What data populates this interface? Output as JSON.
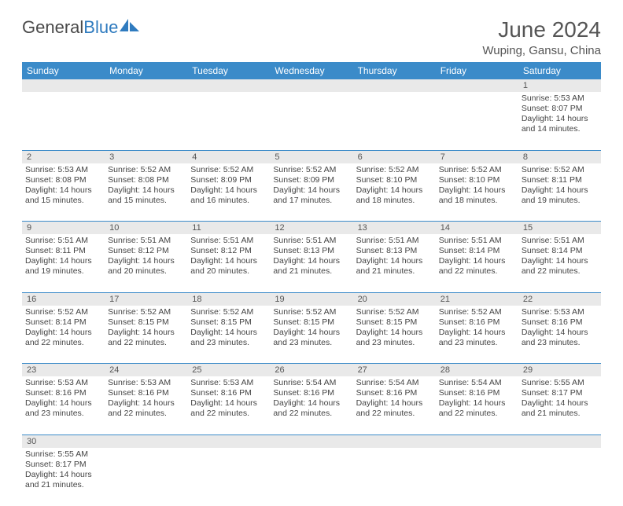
{
  "logo": {
    "text_main": "General",
    "text_accent": "Blue"
  },
  "title": "June 2024",
  "location": "Wuping, Gansu, China",
  "colors": {
    "header_bg": "#3b8bc9",
    "header_text": "#ffffff",
    "daynum_bg": "#e9e9e9",
    "text": "#444444",
    "rule": "#3b8bc9",
    "logo_accent": "#2f7bbf"
  },
  "typography": {
    "title_fontsize": 28,
    "location_fontsize": 15,
    "dow_fontsize": 12,
    "cell_fontsize": 10.5
  },
  "days_of_week": [
    "Sunday",
    "Monday",
    "Tuesday",
    "Wednesday",
    "Thursday",
    "Friday",
    "Saturday"
  ],
  "weeks": [
    [
      null,
      null,
      null,
      null,
      null,
      null,
      {
        "n": "1",
        "sunrise": "5:53 AM",
        "sunset": "8:07 PM",
        "daylight": "14 hours and 14 minutes."
      }
    ],
    [
      {
        "n": "2",
        "sunrise": "5:53 AM",
        "sunset": "8:08 PM",
        "daylight": "14 hours and 15 minutes."
      },
      {
        "n": "3",
        "sunrise": "5:52 AM",
        "sunset": "8:08 PM",
        "daylight": "14 hours and 15 minutes."
      },
      {
        "n": "4",
        "sunrise": "5:52 AM",
        "sunset": "8:09 PM",
        "daylight": "14 hours and 16 minutes."
      },
      {
        "n": "5",
        "sunrise": "5:52 AM",
        "sunset": "8:09 PM",
        "daylight": "14 hours and 17 minutes."
      },
      {
        "n": "6",
        "sunrise": "5:52 AM",
        "sunset": "8:10 PM",
        "daylight": "14 hours and 18 minutes."
      },
      {
        "n": "7",
        "sunrise": "5:52 AM",
        "sunset": "8:10 PM",
        "daylight": "14 hours and 18 minutes."
      },
      {
        "n": "8",
        "sunrise": "5:52 AM",
        "sunset": "8:11 PM",
        "daylight": "14 hours and 19 minutes."
      }
    ],
    [
      {
        "n": "9",
        "sunrise": "5:51 AM",
        "sunset": "8:11 PM",
        "daylight": "14 hours and 19 minutes."
      },
      {
        "n": "10",
        "sunrise": "5:51 AM",
        "sunset": "8:12 PM",
        "daylight": "14 hours and 20 minutes."
      },
      {
        "n": "11",
        "sunrise": "5:51 AM",
        "sunset": "8:12 PM",
        "daylight": "14 hours and 20 minutes."
      },
      {
        "n": "12",
        "sunrise": "5:51 AM",
        "sunset": "8:13 PM",
        "daylight": "14 hours and 21 minutes."
      },
      {
        "n": "13",
        "sunrise": "5:51 AM",
        "sunset": "8:13 PM",
        "daylight": "14 hours and 21 minutes."
      },
      {
        "n": "14",
        "sunrise": "5:51 AM",
        "sunset": "8:14 PM",
        "daylight": "14 hours and 22 minutes."
      },
      {
        "n": "15",
        "sunrise": "5:51 AM",
        "sunset": "8:14 PM",
        "daylight": "14 hours and 22 minutes."
      }
    ],
    [
      {
        "n": "16",
        "sunrise": "5:52 AM",
        "sunset": "8:14 PM",
        "daylight": "14 hours and 22 minutes."
      },
      {
        "n": "17",
        "sunrise": "5:52 AM",
        "sunset": "8:15 PM",
        "daylight": "14 hours and 22 minutes."
      },
      {
        "n": "18",
        "sunrise": "5:52 AM",
        "sunset": "8:15 PM",
        "daylight": "14 hours and 23 minutes."
      },
      {
        "n": "19",
        "sunrise": "5:52 AM",
        "sunset": "8:15 PM",
        "daylight": "14 hours and 23 minutes."
      },
      {
        "n": "20",
        "sunrise": "5:52 AM",
        "sunset": "8:15 PM",
        "daylight": "14 hours and 23 minutes."
      },
      {
        "n": "21",
        "sunrise": "5:52 AM",
        "sunset": "8:16 PM",
        "daylight": "14 hours and 23 minutes."
      },
      {
        "n": "22",
        "sunrise": "5:53 AM",
        "sunset": "8:16 PM",
        "daylight": "14 hours and 23 minutes."
      }
    ],
    [
      {
        "n": "23",
        "sunrise": "5:53 AM",
        "sunset": "8:16 PM",
        "daylight": "14 hours and 23 minutes."
      },
      {
        "n": "24",
        "sunrise": "5:53 AM",
        "sunset": "8:16 PM",
        "daylight": "14 hours and 22 minutes."
      },
      {
        "n": "25",
        "sunrise": "5:53 AM",
        "sunset": "8:16 PM",
        "daylight": "14 hours and 22 minutes."
      },
      {
        "n": "26",
        "sunrise": "5:54 AM",
        "sunset": "8:16 PM",
        "daylight": "14 hours and 22 minutes."
      },
      {
        "n": "27",
        "sunrise": "5:54 AM",
        "sunset": "8:16 PM",
        "daylight": "14 hours and 22 minutes."
      },
      {
        "n": "28",
        "sunrise": "5:54 AM",
        "sunset": "8:16 PM",
        "daylight": "14 hours and 22 minutes."
      },
      {
        "n": "29",
        "sunrise": "5:55 AM",
        "sunset": "8:17 PM",
        "daylight": "14 hours and 21 minutes."
      }
    ],
    [
      {
        "n": "30",
        "sunrise": "5:55 AM",
        "sunset": "8:17 PM",
        "daylight": "14 hours and 21 minutes."
      },
      null,
      null,
      null,
      null,
      null,
      null
    ]
  ],
  "labels": {
    "sunrise": "Sunrise:",
    "sunset": "Sunset:",
    "daylight": "Daylight:"
  }
}
